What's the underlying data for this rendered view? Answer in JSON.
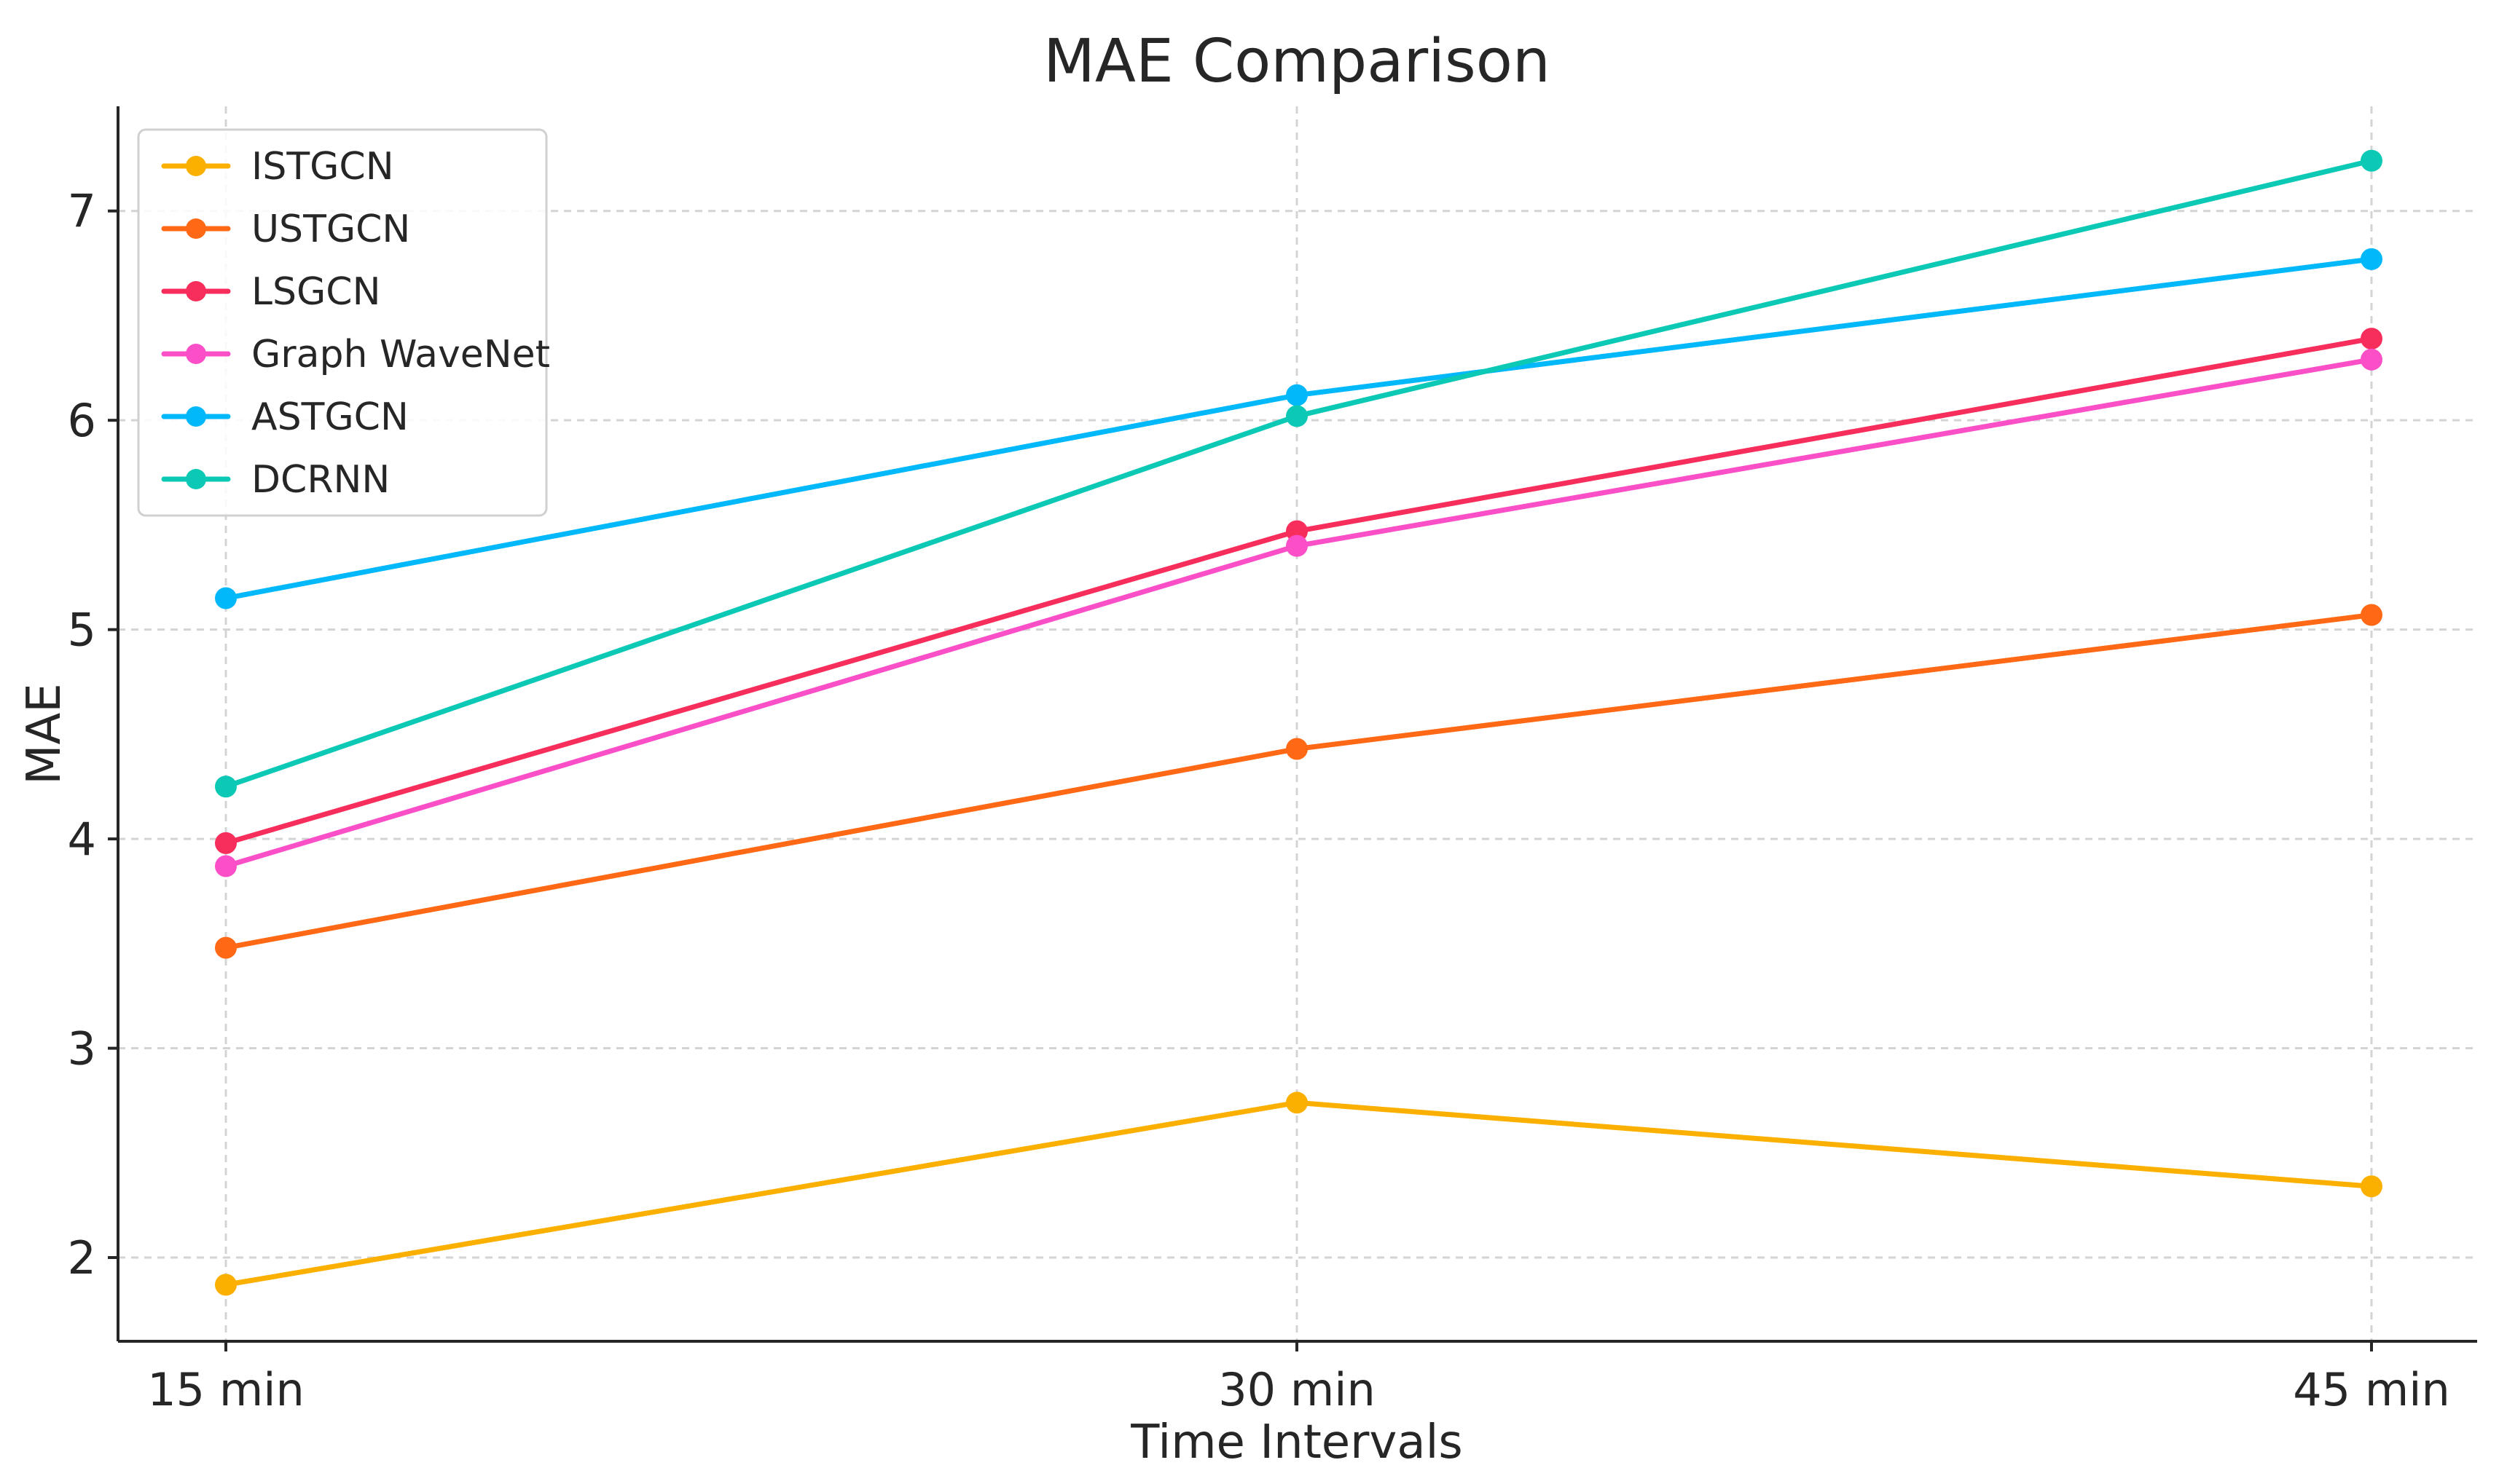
{
  "chart_data": {
    "type": "line",
    "title": "MAE Comparison",
    "xlabel": "Time Intervals",
    "ylabel": "MAE",
    "categories": [
      "15 min",
      "30 min",
      "45 min"
    ],
    "ylim": [
      1.6,
      7.5
    ],
    "yticks": [
      2,
      3,
      4,
      5,
      6,
      7
    ],
    "grid": true,
    "legend_position": "top-left",
    "series": [
      {
        "name": "ISTGCN",
        "color": "#fbb000",
        "values": [
          1.87,
          2.74,
          2.34
        ]
      },
      {
        "name": "USTGCN",
        "color": "#ff6815",
        "values": [
          3.48,
          4.43,
          5.07
        ]
      },
      {
        "name": "LSGCN",
        "color": "#f72d5b",
        "values": [
          3.98,
          5.47,
          6.39
        ]
      },
      {
        "name": "Graph WaveNet",
        "color": "#fb4fc8",
        "values": [
          3.87,
          5.4,
          6.29
        ]
      },
      {
        "name": "ASTGCN",
        "color": "#01b8fb",
        "values": [
          5.15,
          6.12,
          6.77
        ]
      },
      {
        "name": "DCRNN",
        "color": "#0bc9b5",
        "values": [
          4.25,
          6.02,
          7.24
        ]
      }
    ]
  }
}
